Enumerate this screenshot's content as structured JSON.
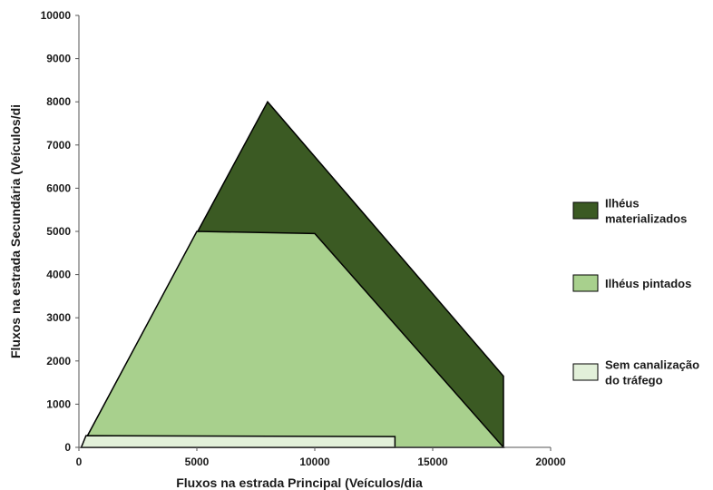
{
  "chart_data": {
    "type": "area",
    "xlabel": "Fluxos na estrada Principal (Veículos/dia",
    "ylabel": "Fluxos na estrada Secundária (Veículos/di",
    "xlim": [
      0,
      20000
    ],
    "ylim": [
      0,
      10000
    ],
    "x_ticks": [
      "0",
      "5000",
      "10000",
      "15000",
      "20000"
    ],
    "y_ticks": [
      "0",
      "1000",
      "2000",
      "3000",
      "4000",
      "5000",
      "6000",
      "7000",
      "8000",
      "9000",
      "10000"
    ],
    "grid": false,
    "legend_position": "right",
    "series": [
      {
        "name": "Ilhéus materializados",
        "legend_lines": [
          "Ilhéus",
          "materializados"
        ],
        "color": "#3b5a23",
        "polygon": [
          [
            100,
            0
          ],
          [
            8000,
            8000
          ],
          [
            18000,
            1650
          ],
          [
            18000,
            0
          ]
        ]
      },
      {
        "name": "Ilhéus pintados",
        "legend_lines": [
          "Ilhéus pintados"
        ],
        "color": "#a8d08d",
        "polygon": [
          [
            100,
            0
          ],
          [
            5000,
            5000
          ],
          [
            10000,
            4950
          ],
          [
            18000,
            0
          ]
        ]
      },
      {
        "name": "Sem canalização do tráfego",
        "legend_lines": [
          "Sem canalização",
          "do tráfego"
        ],
        "color": "#e2f0d9",
        "polygon": [
          [
            100,
            0
          ],
          [
            300,
            270
          ],
          [
            13400,
            250
          ],
          [
            13400,
            0
          ]
        ]
      }
    ]
  }
}
